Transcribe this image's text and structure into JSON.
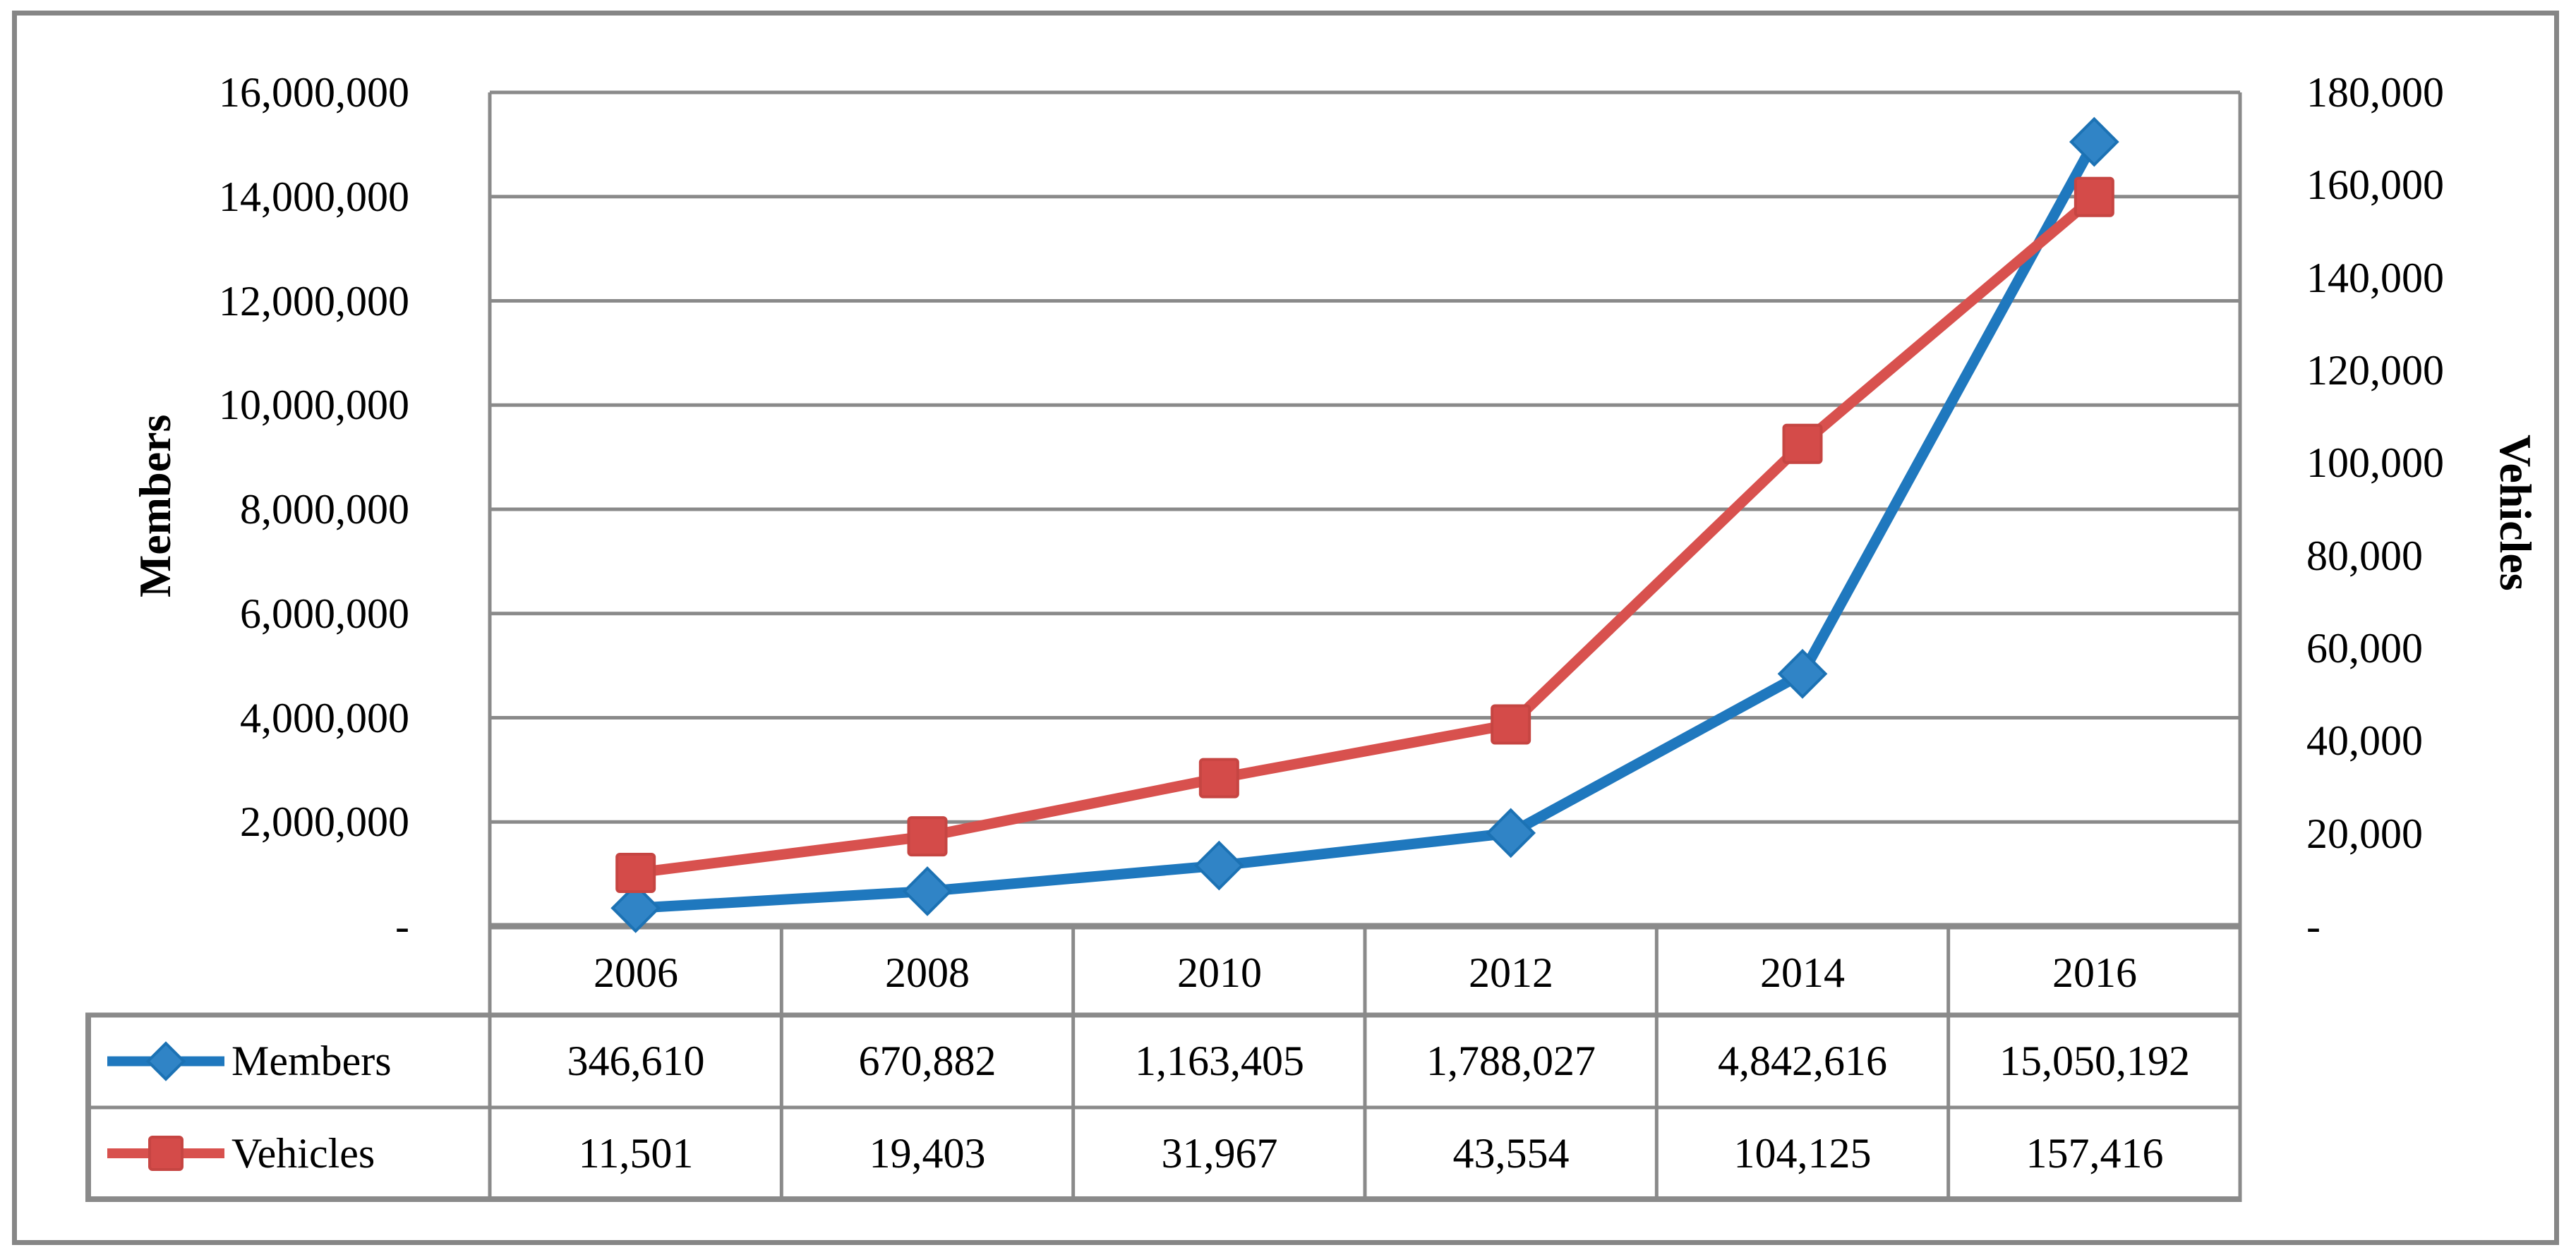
{
  "chart_data": {
    "type": "line",
    "title": "",
    "categories": [
      "2006",
      "2008",
      "2010",
      "2012",
      "2014",
      "2016"
    ],
    "series": [
      {
        "name": "Members",
        "axis": "left",
        "marker": "diamond",
        "line_color": "#1F78BE",
        "marker_fill": "#3084C6",
        "marker_stroke": "#1C72B4",
        "values": [
          346610,
          670882,
          1163405,
          1788027,
          4842616,
          15050192
        ],
        "labels": [
          "346,610",
          "670,882",
          "1,163,405",
          "1,788,027",
          "4,842,616",
          "15,050,192"
        ]
      },
      {
        "name": "Vehicles",
        "axis": "right",
        "marker": "square",
        "line_color": "#D8514E",
        "marker_fill": "#D44B49",
        "marker_stroke": "#C64542",
        "values": [
          11501,
          19403,
          31967,
          43554,
          104125,
          157416
        ],
        "labels": [
          "11,501",
          "19,403",
          "31,967",
          "43,554",
          "104,125",
          "157,416"
        ]
      }
    ],
    "axes": {
      "left": {
        "title": "Members",
        "min": 0,
        "max": 16000000,
        "major_unit": 2000000,
        "ticks": [
          "16,000,000",
          "14,000,000",
          "12,000,000",
          "10,000,000",
          "8,000,000",
          "6,000,000",
          "4,000,000",
          "2,000,000",
          "-"
        ]
      },
      "right": {
        "title": "Vehicles",
        "min": 0,
        "max": 180000,
        "major_unit": 20000,
        "ticks": [
          "180,000",
          "160,000",
          "140,000",
          "120,000",
          "100,000",
          "80,000",
          "60,000",
          "40,000",
          "20,000",
          "-"
        ]
      }
    },
    "grid": true,
    "legend_position": "table-left",
    "colors": {
      "gridline": "#8A8A8A",
      "table_border": "#8A8A8A",
      "outer_frame": "#868686",
      "text": "#000000"
    }
  }
}
